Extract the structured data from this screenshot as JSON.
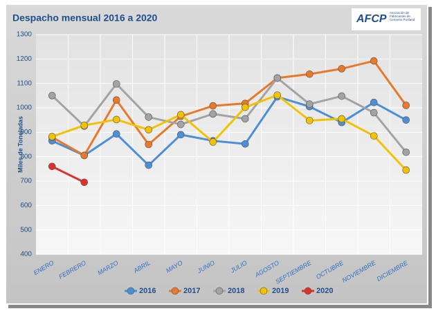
{
  "chart_data": {
    "type": "line",
    "title": "Despacho mensual 2016 a 2020",
    "annotations": [
      "AFCP",
      "Asociación de Fabricantes de Cemento Portland"
    ],
    "y_label": "Miles de Toneladas",
    "categories": [
      "ENERO",
      "FEBRERO",
      "MARZO",
      "ABRIL",
      "MAYO",
      "JUNIO",
      "JULIO",
      "AGOSTO",
      "SEPTIEMBRE",
      "OCTUBRE",
      "NOVIEMBRE",
      "DICIEMBRE"
    ],
    "series": [
      {
        "name": "2016",
        "color": "#4a8fd8",
        "values": [
          865,
          805,
          893,
          765,
          890,
          865,
          852,
          1045,
          1005,
          940,
          1022,
          950
        ]
      },
      {
        "name": "2017",
        "color": "#e8782a",
        "values": [
          880,
          805,
          1032,
          850,
          965,
          1008,
          1018,
          1122,
          1138,
          1160,
          1192,
          1010
        ]
      },
      {
        "name": "2018",
        "color": "#a3a3a3",
        "values": [
          1050,
          925,
          1098,
          962,
          932,
          975,
          955,
          1122,
          1015,
          1048,
          980,
          818
        ]
      },
      {
        "name": "2019",
        "color": "#f2c200",
        "values": [
          882,
          928,
          952,
          910,
          972,
          860,
          1002,
          1052,
          948,
          955,
          885,
          745
        ]
      },
      {
        "name": "2020",
        "color": "#e0302a",
        "values": [
          760,
          695,
          null,
          null,
          null,
          null,
          null,
          null,
          null,
          null,
          null,
          null
        ]
      }
    ],
    "ylim": [
      400,
      1300
    ],
    "yticks": [
      400,
      500,
      600,
      700,
      800,
      900,
      1000,
      1100,
      1200,
      1300
    ],
    "grid": true,
    "legend": "bottom"
  }
}
